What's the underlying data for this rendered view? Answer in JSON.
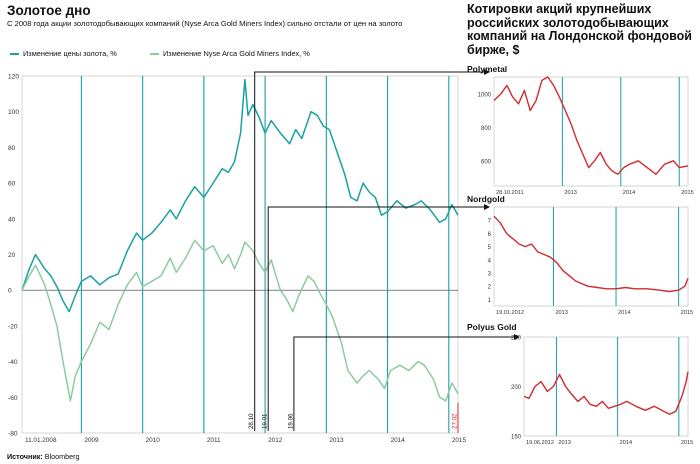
{
  "header": {
    "title": "Золотое дно",
    "subtitle": "С 2008 года акции золотодобывающих компаний (Nyse Arca Gold Miners Index) сильно отстали от цен на золото"
  },
  "right_header": {
    "title": "Котировки акций крупнейших российских золотодобывающих компаний на Лондонской фондовой бирже, $"
  },
  "source": {
    "label": "Источник:",
    "value": "Bloomberg"
  },
  "colors": {
    "gold": "#1aa0a4",
    "miners": "#8ccb9f",
    "stock": "#d12a2f",
    "grid": "#1aa0a4",
    "axis": "#333333"
  },
  "chart_data": [
    {
      "type": "line",
      "title": "Золотое дно",
      "ylim": [
        -80,
        120
      ],
      "yticks": [
        "120",
        "100",
        "80",
        "60",
        "40",
        "20",
        "0",
        "-20",
        "-40",
        "-60",
        "-80"
      ],
      "ytick_values": [
        120,
        100,
        80,
        60,
        40,
        20,
        0,
        -20,
        -40,
        -60,
        -80
      ],
      "xticks": [
        "11.01.2008",
        "2009",
        "2010",
        "2011",
        "2012",
        "2013",
        "2014",
        "2015"
      ],
      "xtick_values": [
        2008.03,
        2009,
        2010,
        2011,
        2012,
        2013,
        2014,
        2015
      ],
      "xlim": [
        2008.03,
        2015.15
      ],
      "markers": [
        {
          "label": "28.10",
          "x": 2011.83,
          "points_to": "Polymetal"
        },
        {
          "label": "19.01",
          "x": 2012.05,
          "points_to": "Nordgold"
        },
        {
          "label": "19.06",
          "x": 2012.47,
          "points_to": "Polyus Gold"
        },
        {
          "label": "27.02",
          "x": 2015.15,
          "points_to": ""
        }
      ],
      "series": [
        {
          "name": "Изменение цены золота, %",
          "color": "#1aa0a4",
          "points": [
            [
              2008.03,
              0
            ],
            [
              2008.15,
              12
            ],
            [
              2008.25,
              20
            ],
            [
              2008.4,
              12
            ],
            [
              2008.5,
              8
            ],
            [
              2008.6,
              2
            ],
            [
              2008.7,
              -6
            ],
            [
              2008.8,
              -12
            ],
            [
              2008.9,
              -3
            ],
            [
              2009.0,
              5
            ],
            [
              2009.15,
              8
            ],
            [
              2009.3,
              3
            ],
            [
              2009.45,
              7
            ],
            [
              2009.6,
              9
            ],
            [
              2009.75,
              22
            ],
            [
              2009.9,
              32
            ],
            [
              2010.0,
              28
            ],
            [
              2010.15,
              32
            ],
            [
              2010.3,
              38
            ],
            [
              2010.45,
              45
            ],
            [
              2010.55,
              40
            ],
            [
              2010.7,
              50
            ],
            [
              2010.85,
              58
            ],
            [
              2011.0,
              52
            ],
            [
              2011.15,
              60
            ],
            [
              2011.3,
              68
            ],
            [
              2011.4,
              66
            ],
            [
              2011.5,
              72
            ],
            [
              2011.6,
              88
            ],
            [
              2011.67,
              118
            ],
            [
              2011.72,
              98
            ],
            [
              2011.8,
              104
            ],
            [
              2011.9,
              97
            ],
            [
              2012.0,
              88
            ],
            [
              2012.1,
              95
            ],
            [
              2012.25,
              88
            ],
            [
              2012.4,
              82
            ],
            [
              2012.5,
              90
            ],
            [
              2012.6,
              85
            ],
            [
              2012.75,
              100
            ],
            [
              2012.85,
              98
            ],
            [
              2012.95,
              92
            ],
            [
              2013.05,
              90
            ],
            [
              2013.15,
              80
            ],
            [
              2013.3,
              65
            ],
            [
              2013.4,
              52
            ],
            [
              2013.5,
              50
            ],
            [
              2013.6,
              60
            ],
            [
              2013.7,
              55
            ],
            [
              2013.8,
              52
            ],
            [
              2013.9,
              42
            ],
            [
              2014.0,
              44
            ],
            [
              2014.15,
              50
            ],
            [
              2014.3,
              46
            ],
            [
              2014.45,
              48
            ],
            [
              2014.55,
              50
            ],
            [
              2014.7,
              45
            ],
            [
              2014.85,
              38
            ],
            [
              2014.95,
              40
            ],
            [
              2015.05,
              48
            ],
            [
              2015.15,
              42
            ]
          ]
        },
        {
          "name": "Изменение Nyse Arca Gold Miners Index, %",
          "color": "#8ccb9f",
          "points": [
            [
              2008.03,
              0
            ],
            [
              2008.15,
              8
            ],
            [
              2008.25,
              14
            ],
            [
              2008.4,
              3
            ],
            [
              2008.5,
              -8
            ],
            [
              2008.6,
              -20
            ],
            [
              2008.7,
              -40
            ],
            [
              2008.82,
              -62
            ],
            [
              2008.9,
              -48
            ],
            [
              2009.0,
              -40
            ],
            [
              2009.15,
              -30
            ],
            [
              2009.3,
              -18
            ],
            [
              2009.45,
              -22
            ],
            [
              2009.6,
              -8
            ],
            [
              2009.75,
              3
            ],
            [
              2009.9,
              10
            ],
            [
              2010.0,
              2
            ],
            [
              2010.15,
              5
            ],
            [
              2010.3,
              8
            ],
            [
              2010.45,
              18
            ],
            [
              2010.55,
              10
            ],
            [
              2010.7,
              18
            ],
            [
              2010.85,
              28
            ],
            [
              2011.0,
              22
            ],
            [
              2011.15,
              25
            ],
            [
              2011.3,
              15
            ],
            [
              2011.4,
              20
            ],
            [
              2011.5,
              12
            ],
            [
              2011.6,
              20
            ],
            [
              2011.67,
              27
            ],
            [
              2011.8,
              22
            ],
            [
              2011.9,
              15
            ],
            [
              2012.0,
              10
            ],
            [
              2012.1,
              17
            ],
            [
              2012.25,
              0
            ],
            [
              2012.35,
              -5
            ],
            [
              2012.45,
              -12
            ],
            [
              2012.55,
              -3
            ],
            [
              2012.7,
              8
            ],
            [
              2012.8,
              5
            ],
            [
              2012.9,
              -2
            ],
            [
              2013.0,
              -8
            ],
            [
              2013.1,
              -15
            ],
            [
              2013.25,
              -30
            ],
            [
              2013.35,
              -45
            ],
            [
              2013.5,
              -52
            ],
            [
              2013.6,
              -48
            ],
            [
              2013.7,
              -45
            ],
            [
              2013.85,
              -50
            ],
            [
              2013.95,
              -55
            ],
            [
              2014.05,
              -45
            ],
            [
              2014.2,
              -42
            ],
            [
              2014.35,
              -45
            ],
            [
              2014.5,
              -40
            ],
            [
              2014.6,
              -42
            ],
            [
              2014.75,
              -50
            ],
            [
              2014.85,
              -60
            ],
            [
              2014.95,
              -62
            ],
            [
              2015.05,
              -52
            ],
            [
              2015.15,
              -58
            ]
          ]
        }
      ]
    },
    {
      "type": "line",
      "title": "Polymetal",
      "ylim": [
        450,
        1100
      ],
      "yticks": [
        "1000",
        "800",
        "600"
      ],
      "ytick_values": [
        1000,
        800,
        600
      ],
      "xticks": [
        "28.10.2011",
        "2013",
        "2014",
        "2015"
      ],
      "xtick_values": [
        2011.83,
        2013,
        2014,
        2015
      ],
      "xlim": [
        2011.83,
        2015.15
      ],
      "series": [
        {
          "name": "",
          "color": "#d12a2f",
          "points": [
            [
              2011.83,
              960
            ],
            [
              2011.95,
              1000
            ],
            [
              2012.05,
              1050
            ],
            [
              2012.15,
              980
            ],
            [
              2012.25,
              940
            ],
            [
              2012.35,
              1020
            ],
            [
              2012.45,
              900
            ],
            [
              2012.55,
              960
            ],
            [
              2012.65,
              1080
            ],
            [
              2012.75,
              1100
            ],
            [
              2012.85,
              1050
            ],
            [
              2012.95,
              980
            ],
            [
              2013.05,
              900
            ],
            [
              2013.15,
              820
            ],
            [
              2013.25,
              720
            ],
            [
              2013.35,
              640
            ],
            [
              2013.45,
              560
            ],
            [
              2013.55,
              600
            ],
            [
              2013.65,
              650
            ],
            [
              2013.75,
              580
            ],
            [
              2013.85,
              540
            ],
            [
              2013.95,
              520
            ],
            [
              2014.05,
              560
            ],
            [
              2014.15,
              580
            ],
            [
              2014.3,
              600
            ],
            [
              2014.45,
              560
            ],
            [
              2014.6,
              520
            ],
            [
              2014.75,
              580
            ],
            [
              2014.9,
              600
            ],
            [
              2015.0,
              560
            ],
            [
              2015.15,
              570
            ]
          ]
        }
      ]
    },
    {
      "type": "line",
      "title": "Nordgold",
      "ylim": [
        0.5,
        8
      ],
      "yticks": [
        "7",
        "6",
        "5",
        "4",
        "3",
        "2",
        "1"
      ],
      "ytick_values": [
        7,
        6,
        5,
        4,
        3,
        2,
        1
      ],
      "xticks": [
        "19.01.2012",
        "2013",
        "2014",
        "2015"
      ],
      "xtick_values": [
        2012.05,
        2013,
        2014,
        2015
      ],
      "xlim": [
        2012.05,
        2015.15
      ],
      "series": [
        {
          "name": "",
          "color": "#d12a2f",
          "points": [
            [
              2012.05,
              7.3
            ],
            [
              2012.15,
              6.8
            ],
            [
              2012.25,
              6.0
            ],
            [
              2012.35,
              5.6
            ],
            [
              2012.45,
              5.2
            ],
            [
              2012.55,
              5.0
            ],
            [
              2012.65,
              5.2
            ],
            [
              2012.75,
              4.6
            ],
            [
              2012.85,
              4.4
            ],
            [
              2012.95,
              4.2
            ],
            [
              2013.05,
              3.8
            ],
            [
              2013.15,
              3.2
            ],
            [
              2013.25,
              2.8
            ],
            [
              2013.35,
              2.4
            ],
            [
              2013.45,
              2.2
            ],
            [
              2013.55,
              2.0
            ],
            [
              2013.7,
              1.9
            ],
            [
              2013.85,
              1.8
            ],
            [
              2014.0,
              1.8
            ],
            [
              2014.15,
              1.9
            ],
            [
              2014.3,
              1.8
            ],
            [
              2014.5,
              1.8
            ],
            [
              2014.7,
              1.7
            ],
            [
              2014.85,
              1.6
            ],
            [
              2015.0,
              1.7
            ],
            [
              2015.1,
              2.0
            ],
            [
              2015.15,
              2.6
            ]
          ]
        }
      ]
    },
    {
      "type": "line",
      "title": "Polyus Gold",
      "ylim": [
        150,
        250
      ],
      "yticks": [
        "250",
        "200",
        "150"
      ],
      "ytick_values": [
        250,
        200,
        150
      ],
      "xticks": [
        "19.06.2012",
        "2013",
        "2014",
        "2015"
      ],
      "xtick_values": [
        2012.47,
        2013,
        2014,
        2015
      ],
      "xlim": [
        2012.47,
        2015.15
      ],
      "series": [
        {
          "name": "",
          "color": "#d12a2f",
          "points": [
            [
              2012.47,
              190
            ],
            [
              2012.55,
              188
            ],
            [
              2012.65,
              200
            ],
            [
              2012.75,
              205
            ],
            [
              2012.85,
              195
            ],
            [
              2012.95,
              200
            ],
            [
              2013.05,
              212
            ],
            [
              2013.15,
              200
            ],
            [
              2013.25,
              192
            ],
            [
              2013.35,
              185
            ],
            [
              2013.45,
              190
            ],
            [
              2013.55,
              182
            ],
            [
              2013.65,
              180
            ],
            [
              2013.75,
              185
            ],
            [
              2013.85,
              178
            ],
            [
              2013.95,
              180
            ],
            [
              2014.05,
              182
            ],
            [
              2014.15,
              185
            ],
            [
              2014.3,
              180
            ],
            [
              2014.45,
              176
            ],
            [
              2014.6,
              180
            ],
            [
              2014.75,
              175
            ],
            [
              2014.85,
              172
            ],
            [
              2014.95,
              175
            ],
            [
              2015.05,
              190
            ],
            [
              2015.12,
              205
            ],
            [
              2015.15,
              215
            ]
          ]
        }
      ]
    }
  ]
}
